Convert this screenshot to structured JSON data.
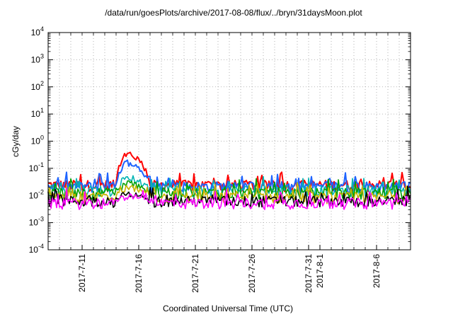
{
  "chart_data": {
    "type": "line",
    "title": "/data/run/goesPlots/archive/2017-08-08/flux/../bryn/31daysMoon.plot",
    "xlabel": "Coordinated Universal Time (UTC)",
    "ylabel": "cGy/day",
    "y_scale": "log",
    "ylim": [
      0.0001,
      10000
    ],
    "y_ticks": [
      {
        "base": "10",
        "exp": "-4",
        "value": 0.0001
      },
      {
        "base": "10",
        "exp": "-3",
        "value": 0.001
      },
      {
        "base": "10",
        "exp": "-2",
        "value": 0.01
      },
      {
        "base": "10",
        "exp": "-1",
        "value": 0.1
      },
      {
        "base": "10",
        "exp": "0",
        "value": 1
      },
      {
        "base": "10",
        "exp": "1",
        "value": 10
      },
      {
        "base": "10",
        "exp": "2",
        "value": 100
      },
      {
        "base": "10",
        "exp": "3",
        "value": 1000
      },
      {
        "base": "10",
        "exp": "4",
        "value": 10000
      }
    ],
    "xlim": [
      "2017-07-08",
      "2017-08-09"
    ],
    "x_ticks": [
      {
        "label": "2017-7-11",
        "date": "2017-07-11"
      },
      {
        "label": "2017-7-16",
        "date": "2017-07-16"
      },
      {
        "label": "2017-7-21",
        "date": "2017-07-21"
      },
      {
        "label": "2017-7-26",
        "date": "2017-07-26"
      },
      {
        "label": "2017-7-31",
        "date": "2017-07-31"
      },
      {
        "label": "2017-8-1",
        "date": "2017-08-01"
      },
      {
        "label": "2017-8-6",
        "date": "2017-08-06"
      }
    ],
    "grid": true,
    "series": [
      {
        "color": "#ff0000",
        "base": 0.025,
        "event_peak": 0.35
      },
      {
        "color": "#1e64ff",
        "base": 0.022,
        "event_peak": 0.18
      },
      {
        "color": "#00b4b4",
        "base": 0.016,
        "event_peak": 0.05
      },
      {
        "color": "#00a000",
        "base": 0.013,
        "event_peak": 0.03
      },
      {
        "color": "#c8b400",
        "base": 0.009,
        "event_peak": 0.02
      },
      {
        "color": "#000000",
        "base": 0.0065,
        "event_peak": 0.012
      },
      {
        "color": "#ff00ff",
        "base": 0.0055,
        "event_peak": 0.01
      }
    ],
    "event": {
      "start": "2017-07-14",
      "peak": "2017-07-15",
      "end": "2017-07-17"
    }
  }
}
